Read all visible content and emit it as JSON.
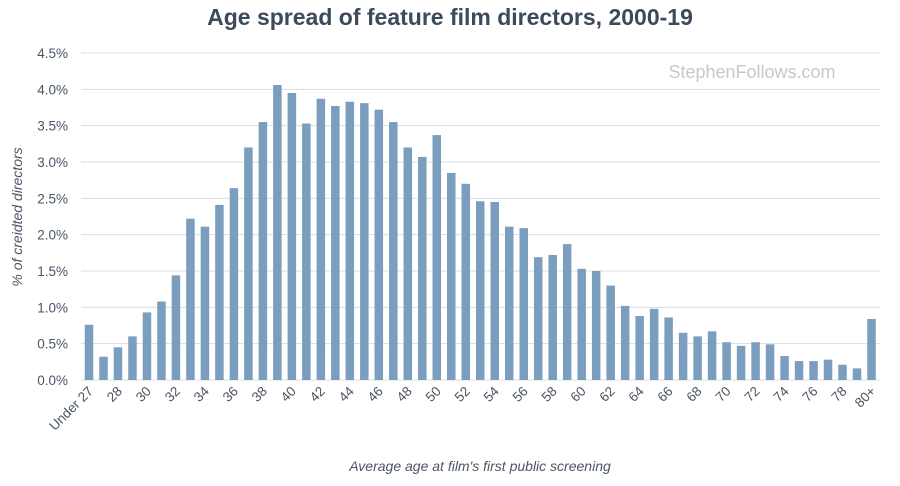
{
  "chart_data": {
    "type": "bar",
    "title": "Age spread of feature film directors, 2000-19",
    "xlabel": "Average age at film's first public screening",
    "ylabel": "% of creidted directors",
    "watermark": "StephenFollows.com",
    "ylim": [
      0,
      4.5
    ],
    "yticks": [
      "0.0%",
      "0.5%",
      "1.0%",
      "1.5%",
      "2.0%",
      "2.5%",
      "3.0%",
      "3.5%",
      "4.0%",
      "4.5%"
    ],
    "categories": [
      "Under 27",
      "27",
      "28",
      "29",
      "30",
      "31",
      "32",
      "33",
      "34",
      "35",
      "36",
      "37",
      "38",
      "39",
      "40",
      "41",
      "42",
      "43",
      "44",
      "45",
      "46",
      "47",
      "48",
      "49",
      "50",
      "51",
      "52",
      "53",
      "54",
      "55",
      "56",
      "57",
      "58",
      "59",
      "60",
      "61",
      "62",
      "63",
      "64",
      "65",
      "66",
      "67",
      "68",
      "69",
      "70",
      "71",
      "72",
      "73",
      "74",
      "75",
      "76",
      "77",
      "78",
      "79",
      "80+"
    ],
    "xtick_labels": [
      "Under 27",
      "28",
      "30",
      "32",
      "34",
      "36",
      "38",
      "40",
      "42",
      "44",
      "46",
      "48",
      "50",
      "52",
      "54",
      "56",
      "58",
      "60",
      "62",
      "64",
      "66",
      "68",
      "70",
      "72",
      "74",
      "76",
      "78",
      "80+"
    ],
    "values": [
      0.76,
      0.32,
      0.45,
      0.6,
      0.93,
      1.08,
      1.44,
      2.22,
      2.11,
      2.41,
      2.64,
      3.2,
      3.55,
      4.06,
      3.95,
      3.53,
      3.87,
      3.77,
      3.83,
      3.81,
      3.72,
      3.55,
      3.2,
      3.07,
      3.37,
      2.85,
      2.7,
      2.46,
      2.45,
      2.11,
      2.09,
      1.69,
      1.72,
      1.87,
      1.53,
      1.5,
      1.3,
      1.02,
      0.88,
      0.98,
      0.86,
      0.65,
      0.6,
      0.67,
      0.52,
      0.47,
      0.52,
      0.49,
      0.33,
      0.26,
      0.26,
      0.28,
      0.21,
      0.16,
      0.84
    ],
    "bar_color": "#7b9ebf",
    "grid": true,
    "legend": "none"
  }
}
